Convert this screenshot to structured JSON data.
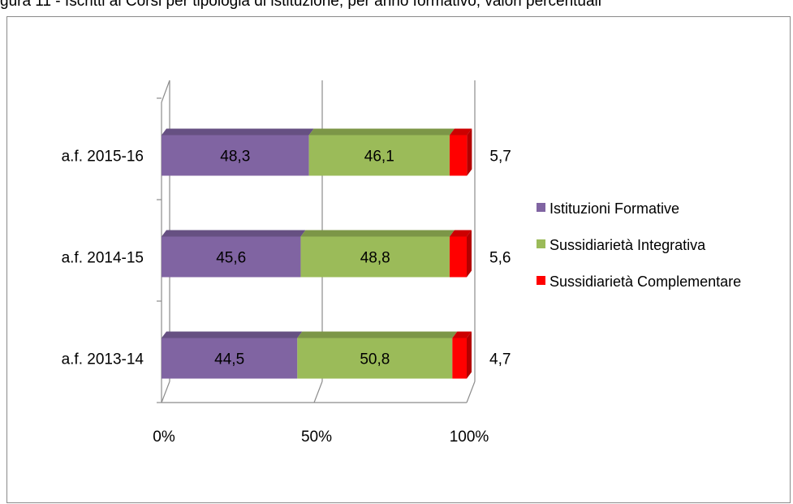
{
  "caption": "gura 11 - Iscritti ai Corsi per tipologia di istituzione, per anno formativo, valori percentuali",
  "chart_data": {
    "type": "bar",
    "orientation": "horizontal",
    "stacked": "percent",
    "three_d": true,
    "categories": [
      "a.f. 2015-16",
      "a.f. 2014-15",
      "a.f. 2013-14"
    ],
    "series": [
      {
        "name": "Istituzioni Formative",
        "color": "#8064a2",
        "values": [
          48.3,
          45.6,
          44.5
        ],
        "labels": [
          "48,3",
          "45,6",
          "44,5"
        ]
      },
      {
        "name": "Sussidiarietà Integrativa",
        "color": "#9bbb59",
        "values": [
          46.1,
          48.8,
          50.8
        ],
        "labels": [
          "46,1",
          "48,8",
          "50,8"
        ]
      },
      {
        "name": "Sussidiarietà Complementare",
        "color": "#ff0000",
        "values": [
          5.7,
          5.6,
          4.7
        ],
        "labels": [
          "5,7",
          "5,6",
          "4,7"
        ]
      }
    ],
    "x_ticks": [
      "0%",
      "50%",
      "100%"
    ],
    "xlim": [
      0,
      100
    ],
    "grid": true,
    "legend": "right"
  }
}
